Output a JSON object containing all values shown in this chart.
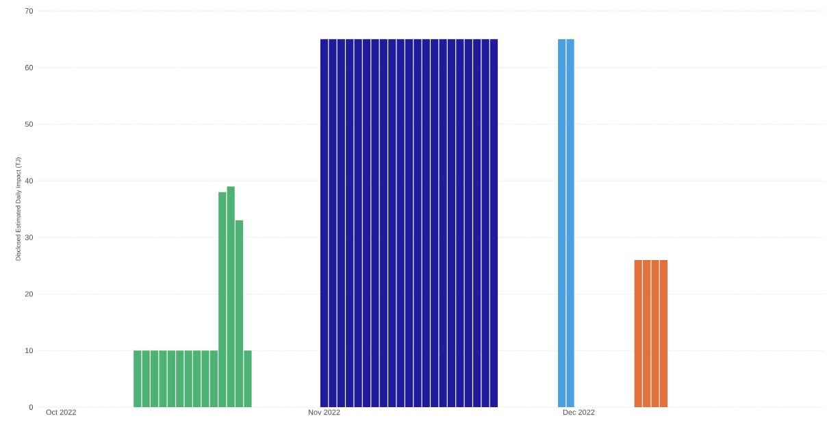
{
  "chart_data": {
    "type": "bar",
    "ylabel": "Disclosed Estimated Daily Impact (TJ)",
    "series": [
      {
        "color": "#4eb274",
        "x": [
          "2022-10-10",
          "2022-10-11",
          "2022-10-12",
          "2022-10-13",
          "2022-10-14",
          "2022-10-15",
          "2022-10-16",
          "2022-10-17",
          "2022-10-18",
          "2022-10-19",
          "2022-10-20",
          "2022-10-21",
          "2022-10-22",
          "2022-10-23"
        ],
        "values": [
          10,
          10,
          10,
          10,
          10,
          10,
          10,
          10,
          10,
          10,
          38,
          39,
          33,
          10
        ]
      },
      {
        "color": "#1f1b9c",
        "x": [
          "2022-11-01",
          "2022-11-02",
          "2022-11-03",
          "2022-11-04",
          "2022-11-05",
          "2022-11-06",
          "2022-11-07",
          "2022-11-08",
          "2022-11-09",
          "2022-11-10",
          "2022-11-11",
          "2022-11-12",
          "2022-11-13",
          "2022-11-14",
          "2022-11-15",
          "2022-11-16",
          "2022-11-17",
          "2022-11-18",
          "2022-11-19",
          "2022-11-20",
          "2022-11-21"
        ],
        "values": [
          65,
          65,
          65,
          65,
          65,
          65,
          65,
          65,
          65,
          65,
          65,
          65,
          65,
          65,
          65,
          65,
          65,
          65,
          65,
          65,
          65
        ]
      },
      {
        "color": "#4c9fdf",
        "x": [
          "2022-11-29",
          "2022-11-30"
        ],
        "values": [
          65,
          65
        ]
      },
      {
        "color": "#e4703c",
        "x": [
          "2022-12-08",
          "2022-12-09",
          "2022-12-10",
          "2022-12-11"
        ],
        "values": [
          26,
          26,
          26,
          26
        ]
      }
    ],
    "xlim": [
      "2022-09-28",
      "2022-12-30"
    ],
    "xticks": [
      {
        "value": "2022-10-01",
        "label": "Oct 2022"
      },
      {
        "value": "2022-11-01",
        "label": "Nov 2022"
      },
      {
        "value": "2022-12-01",
        "label": "Dec 2022"
      }
    ],
    "ylim": [
      0,
      70
    ],
    "yticks": [
      0,
      10,
      20,
      30,
      40,
      50,
      60,
      70
    ],
    "grid": "y"
  }
}
